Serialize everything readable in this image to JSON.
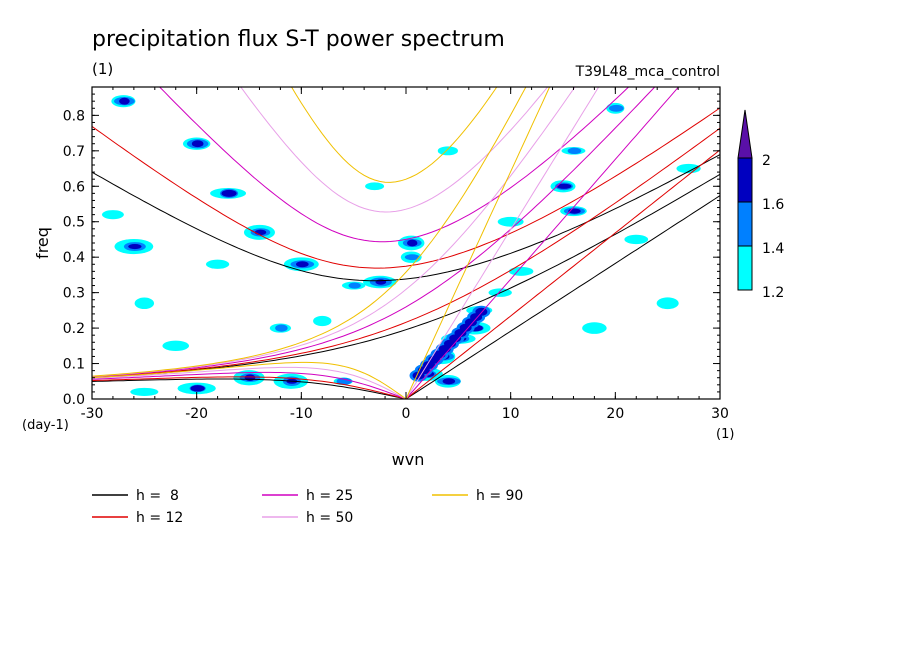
{
  "chart_data": {
    "type": "heatmap",
    "title": "precipitation flux S-T power spectrum",
    "subtitle_left": "(1)",
    "subtitle_right": "T39L48_mca_control",
    "xlabel": "wvn",
    "ylabel": "freq",
    "x_unit": "(1)",
    "y_unit": "(day-1)",
    "xlim": [
      -30,
      30
    ],
    "ylim": [
      0,
      0.88
    ],
    "x_ticks": [
      -30,
      -20,
      -10,
      0,
      10,
      20,
      30
    ],
    "x_tick_labels": [
      "-30",
      "-20",
      "-10",
      "0",
      "10",
      "20",
      "30"
    ],
    "y_ticks": [
      0.0,
      0.1,
      0.2,
      0.3,
      0.4,
      0.5,
      0.6,
      0.7,
      0.8
    ],
    "y_tick_labels": [
      "0.0",
      "0.1",
      "0.2",
      "0.3",
      "0.4",
      "0.5",
      "0.6",
      "0.7",
      "0.8"
    ],
    "colorbar": {
      "levels": [
        1.2,
        1.4,
        1.6,
        2
      ],
      "level_labels": [
        "1.2",
        "1.4",
        "1.6",
        "2"
      ],
      "colors": [
        "#00ffff",
        "#0080ff",
        "#0000c0",
        "#5a10a8"
      ]
    },
    "dispersion_curves": [
      {
        "name": "h =  8",
        "h": 8,
        "color": "#000000"
      },
      {
        "name": "h = 12",
        "h": 12,
        "color": "#e00000"
      },
      {
        "name": "h = 25",
        "h": 25,
        "color": "#d000c0"
      },
      {
        "name": "h = 50",
        "h": 50,
        "color": "#e8a0e8"
      },
      {
        "name": "h = 90",
        "h": 90,
        "color": "#f0c000"
      }
    ],
    "power_regions": [
      {
        "wvn": 2,
        "freq": 0.07,
        "level": 1.6
      },
      {
        "wvn": 3.5,
        "freq": 0.12,
        "level": 1.6
      },
      {
        "wvn": 5,
        "freq": 0.17,
        "level": 2
      },
      {
        "wvn": 6.5,
        "freq": 0.2,
        "level": 1.6
      },
      {
        "wvn": 4,
        "freq": 0.05,
        "level": 1.6
      },
      {
        "wvn": 7,
        "freq": 0.25,
        "level": 1.4
      },
      {
        "wvn": 9,
        "freq": 0.3,
        "level": 1.2
      },
      {
        "wvn": 11,
        "freq": 0.36,
        "level": 1.2
      },
      {
        "wvn": 0.5,
        "freq": 0.44,
        "level": 1.6
      },
      {
        "wvn": 0.5,
        "freq": 0.4,
        "level": 1.4
      },
      {
        "wvn": -2.5,
        "freq": 0.33,
        "level": 1.6
      },
      {
        "wvn": -5,
        "freq": 0.32,
        "level": 1.4
      },
      {
        "wvn": -10,
        "freq": 0.38,
        "level": 1.6
      },
      {
        "wvn": -14,
        "freq": 0.47,
        "level": 1.6
      },
      {
        "wvn": -17,
        "freq": 0.58,
        "level": 1.6
      },
      {
        "wvn": -26,
        "freq": 0.43,
        "level": 1.6
      },
      {
        "wvn": -28,
        "freq": 0.52,
        "level": 1.2
      },
      {
        "wvn": -20,
        "freq": 0.72,
        "level": 1.6
      },
      {
        "wvn": -27,
        "freq": 0.84,
        "level": 1.6
      },
      {
        "wvn": -15,
        "freq": 0.06,
        "level": 1.6
      },
      {
        "wvn": -20,
        "freq": 0.03,
        "level": 1.6
      },
      {
        "wvn": -11,
        "freq": 0.05,
        "level": 1.6
      },
      {
        "wvn": -6,
        "freq": 0.05,
        "level": 1.4
      },
      {
        "wvn": -25,
        "freq": 0.02,
        "level": 1.2
      },
      {
        "wvn": 16,
        "freq": 0.7,
        "level": 1.4
      },
      {
        "wvn": 15,
        "freq": 0.6,
        "level": 1.6
      },
      {
        "wvn": 16,
        "freq": 0.53,
        "level": 1.6
      },
      {
        "wvn": 22,
        "freq": 0.45,
        "level": 1.2
      },
      {
        "wvn": 20,
        "freq": 0.82,
        "level": 1.4
      },
      {
        "wvn": 25,
        "freq": 0.27,
        "level": 1.2
      },
      {
        "wvn": -22,
        "freq": 0.15,
        "level": 1.2
      },
      {
        "wvn": -12,
        "freq": 0.2,
        "level": 1.4
      },
      {
        "wvn": -3,
        "freq": 0.6,
        "level": 1.2
      },
      {
        "wvn": 4,
        "freq": 0.7,
        "level": 1.2
      },
      {
        "wvn": -8,
        "freq": 0.22,
        "level": 1.2
      },
      {
        "wvn": -18,
        "freq": 0.38,
        "level": 1.2
      },
      {
        "wvn": 18,
        "freq": 0.2,
        "level": 1.2
      },
      {
        "wvn": 27,
        "freq": 0.65,
        "level": 1.2
      },
      {
        "wvn": -25,
        "freq": 0.27,
        "level": 1.2
      },
      {
        "wvn": 10,
        "freq": 0.5,
        "level": 1.2
      }
    ]
  }
}
